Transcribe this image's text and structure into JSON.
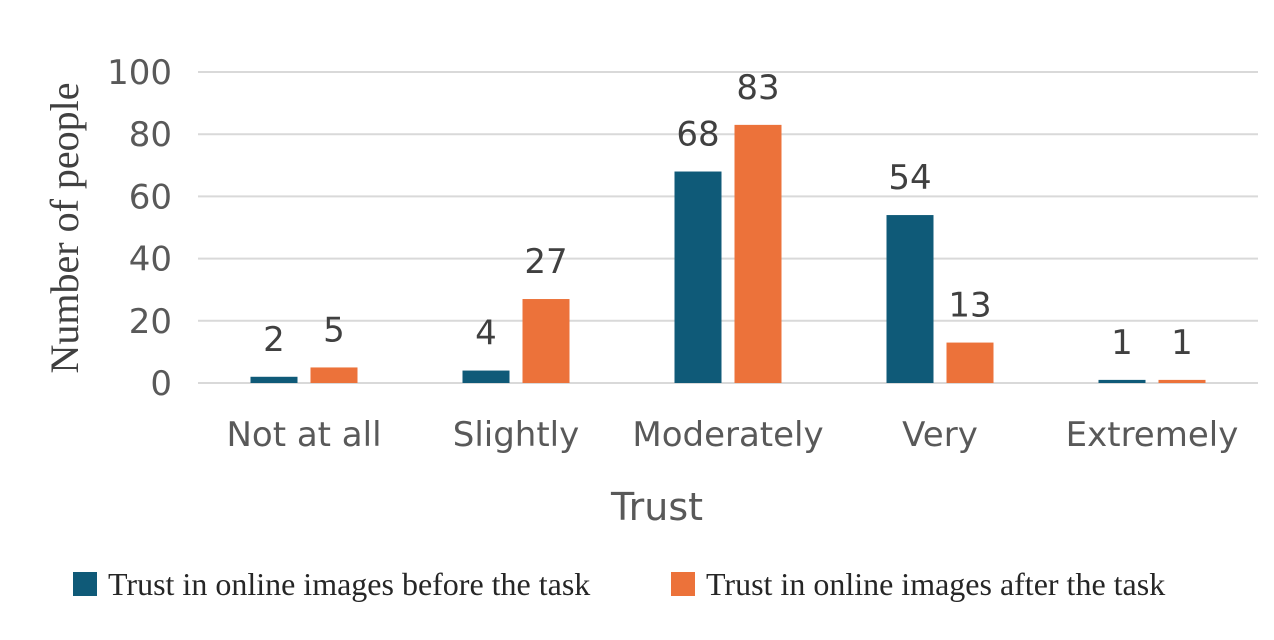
{
  "chart_data": {
    "type": "bar",
    "categories": [
      "Not at all",
      "Slightly",
      "Moderately",
      "Very",
      "Extremely"
    ],
    "series": [
      {
        "name": "Trust in online images before the task",
        "values": [
          2,
          4,
          68,
          54,
          1
        ],
        "color": "#0f5a78"
      },
      {
        "name": "Trust in online images after the task",
        "values": [
          5,
          27,
          83,
          13,
          1
        ],
        "color": "#ec723a"
      }
    ],
    "xlabel": "Trust",
    "ylabel": "Number of people",
    "ylim": [
      0,
      100
    ],
    "yticks": [
      0,
      20,
      40,
      60,
      80,
      100
    ],
    "grid": true,
    "legend": "bottom"
  }
}
